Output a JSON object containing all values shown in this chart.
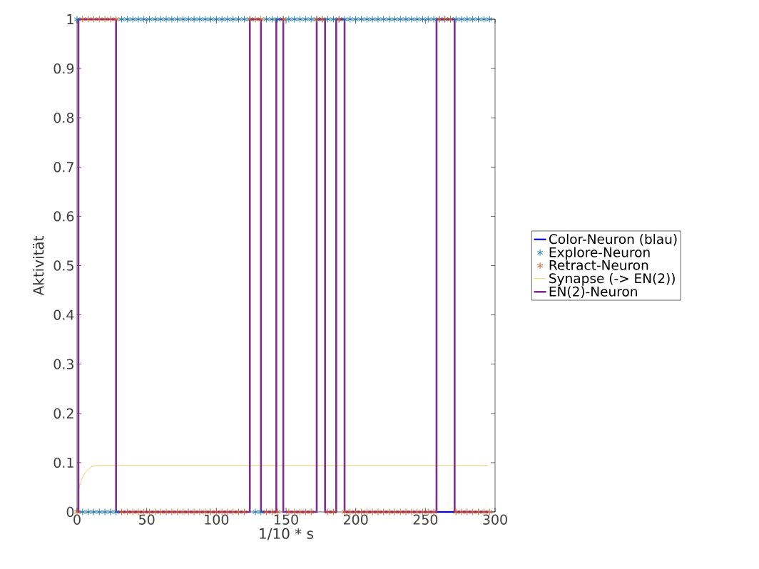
{
  "chart_data": {
    "type": "line",
    "xlabel": "1/10 * s",
    "ylabel": "Aktivität",
    "xlim": [
      0,
      300
    ],
    "xticks": [
      0,
      50,
      100,
      150,
      200,
      250,
      300
    ],
    "ylim": [
      0,
      1
    ],
    "yticks": [
      0,
      0.1,
      0.2,
      0.3,
      0.4,
      0.5,
      0.6,
      0.7,
      0.8,
      0.9,
      1
    ],
    "legend": "right",
    "grid": false,
    "x": [
      0,
      4,
      8,
      12,
      16,
      20,
      24,
      28,
      32,
      36,
      40,
      44,
      48,
      52,
      56,
      60,
      64,
      68,
      72,
      76,
      80,
      84,
      88,
      92,
      96,
      100,
      104,
      108,
      112,
      116,
      120,
      124,
      128,
      132,
      136,
      140,
      144,
      148,
      152,
      156,
      160,
      164,
      168,
      172,
      176,
      180,
      184,
      188,
      192,
      196,
      200,
      204,
      208,
      212,
      216,
      220,
      224,
      228,
      232,
      236,
      240,
      244,
      248,
      252,
      256,
      260,
      264,
      268,
      272,
      276,
      280,
      284,
      288,
      292,
      296
    ],
    "series": [
      {
        "name": "Color-Neuron (blau)",
        "color": "#0000ff",
        "x": [
          258,
          271
        ],
        "values": [
          0,
          0
        ]
      },
      {
        "name": "Explore-Neuron",
        "type": "scatter",
        "marker": "cross",
        "color": "#0072bd",
        "values": [
          1,
          0,
          0,
          0,
          0,
          0,
          0,
          0,
          1,
          1,
          1,
          1,
          1,
          1,
          1,
          1,
          1,
          1,
          1,
          1,
          1,
          1,
          1,
          1,
          1,
          1,
          1,
          1,
          1,
          1,
          1,
          1,
          0,
          0,
          1,
          1,
          1,
          1,
          1,
          1,
          1,
          1,
          1,
          1,
          1,
          1,
          1,
          1,
          1,
          1,
          1,
          1,
          1,
          1,
          1,
          1,
          1,
          1,
          1,
          1,
          1,
          1,
          1,
          1,
          1,
          1,
          1,
          1,
          1,
          1,
          1,
          1,
          1,
          1,
          1
        ]
      },
      {
        "name": "Retract-Neuron",
        "type": "scatter",
        "marker": "cross",
        "color": "#d95319",
        "values": [
          0,
          1,
          1,
          1,
          1,
          1,
          1,
          1,
          0,
          0,
          0,
          0,
          0,
          0,
          0,
          0,
          0,
          0,
          0,
          0,
          0,
          0,
          0,
          0,
          0,
          0,
          0,
          0,
          0,
          0,
          0,
          1,
          1,
          1,
          0,
          0,
          0,
          1,
          0,
          0,
          0,
          0,
          0,
          1,
          1,
          0,
          0,
          1,
          0,
          0,
          0,
          0,
          0,
          0,
          0,
          0,
          0,
          0,
          0,
          0,
          0,
          0,
          0,
          0,
          0,
          1,
          1,
          1,
          0,
          0,
          0,
          0,
          0,
          0,
          0
        ]
      },
      {
        "name": "Synapse (-> EN(2))",
        "color": "#edb120",
        "x": [
          0,
          2,
          4,
          6,
          8,
          10,
          12,
          15,
          20,
          295
        ],
        "values": [
          0.03,
          0.055,
          0.07,
          0.08,
          0.087,
          0.091,
          0.093,
          0.095,
          0.095,
          0.095
        ]
      },
      {
        "name": "EN(2)-Neuron",
        "color": "#7e2f8e",
        "x": [
          0,
          1,
          1,
          28,
          28,
          124,
          124,
          132,
          132,
          143,
          143,
          148,
          148,
          172,
          172,
          178,
          178,
          186,
          186,
          192,
          192,
          258,
          258,
          271,
          271,
          295
        ],
        "values": [
          0,
          0,
          1,
          1,
          0,
          0,
          1,
          1,
          0,
          0,
          1,
          1,
          0,
          0,
          1,
          1,
          0,
          0,
          1,
          1,
          0,
          0,
          1,
          1,
          0,
          0
        ]
      }
    ]
  }
}
